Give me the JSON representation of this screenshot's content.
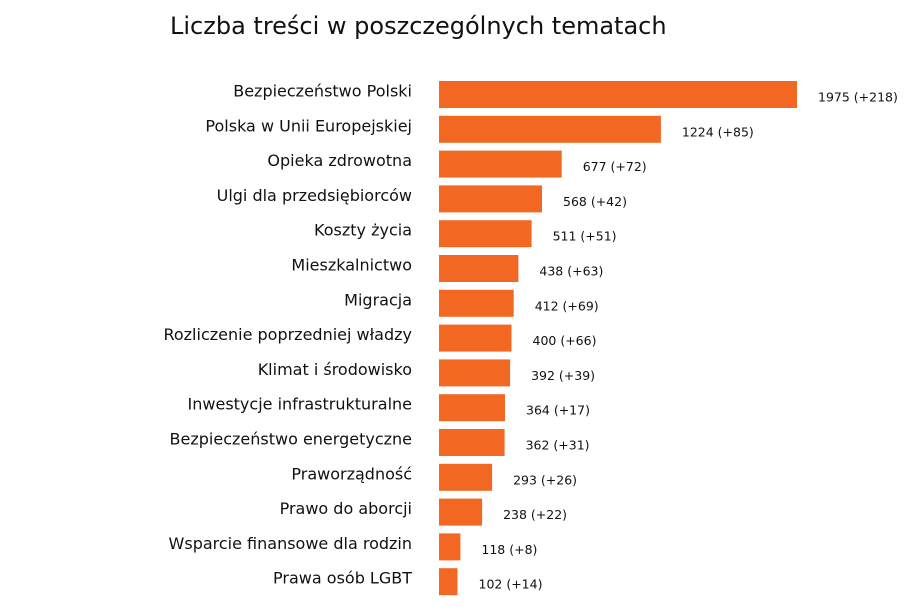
{
  "chart_data": {
    "type": "bar",
    "orientation": "horizontal",
    "title": "Liczba treści w poszczególnych tematach",
    "categories": [
      "Bezpieczeństwo Polski",
      "Polska w Unii Europejskiej",
      "Opieka zdrowotna",
      "Ulgi dla przedsiębiorców",
      "Koszty życia",
      "Mieszkalnictwo",
      "Migracja",
      "Rozliczenie poprzedniej władzy",
      "Klimat i środowisko",
      "Inwestycje infrastrukturalne",
      "Bezpieczeństwo energetyczne",
      "Praworządność",
      "Prawo do aborcji",
      "Wsparcie finansowe dla rodzin",
      "Prawa osób LGBT"
    ],
    "values": [
      1975,
      1224,
      677,
      568,
      511,
      438,
      412,
      400,
      392,
      364,
      362,
      293,
      238,
      118,
      102
    ],
    "data_labels": [
      "1975 (+218)",
      "1224 (+85)",
      "677 (+72)",
      "568 (+42)",
      "511 (+51)",
      "438 (+63)",
      "412 (+69)",
      "400 (+66)",
      "392 (+39)",
      "364 (+17)",
      "362 (+31)",
      "293 (+26)",
      "238 (+22)",
      "118 (+8)",
      "102 (+14)"
    ],
    "bar_color": "#f26722",
    "xlim": [
      0,
      1975
    ],
    "grid": false,
    "legend": "none"
  }
}
